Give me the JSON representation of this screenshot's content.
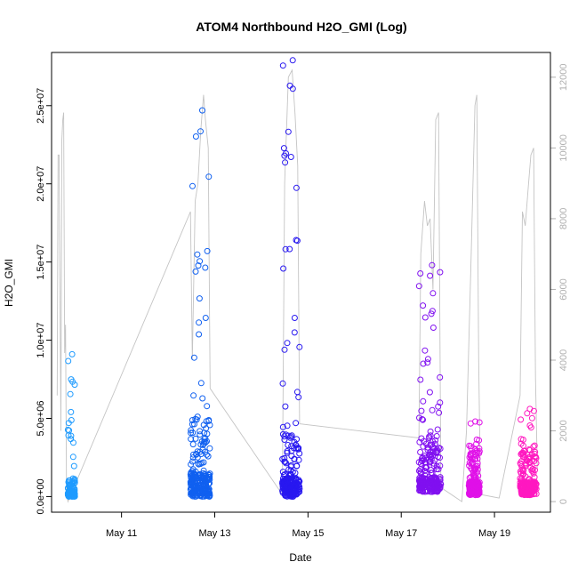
{
  "chart_data": {
    "type": "scatter",
    "title": "ATOM4 Northbound H2O_GMI (Log)",
    "xlabel": "Date",
    "ylabel": "H2O_GMI",
    "x_ticks": [
      "May 11",
      "May 13",
      "May 15",
      "May 17",
      "May 19"
    ],
    "x_tick_days": [
      11,
      13,
      15,
      17,
      19
    ],
    "xlim": [
      9.5,
      20.2
    ],
    "ylim": [
      -1000000,
      28400000
    ],
    "y_ticks": [
      0,
      5000000,
      10000000,
      15000000,
      20000000,
      25000000
    ],
    "y_tick_labels": [
      "0.0e+00",
      "5.0e+06",
      "1.0e+07",
      "1.5e+07",
      "2.0e+07",
      "2.5e+07"
    ],
    "y2lim": [
      -300,
      12700
    ],
    "y2_ticks": [
      0,
      2000,
      4000,
      6000,
      8000,
      10000,
      12000
    ],
    "y2_tick_labels": [
      "0",
      "2000",
      "4000",
      "6000",
      "8000",
      "10000",
      "12000"
    ],
    "grid": false,
    "legend": "none",
    "flights": [
      {
        "date": "2016-05-09",
        "color": "#1E9BFF",
        "x_start": 9.85,
        "x_end": 10.0,
        "y_min": 0,
        "y_max": 9100000,
        "y_typical": 600000,
        "alt_profile": [
          [
            9.62,
            3000
          ],
          [
            9.64,
            9800
          ],
          [
            9.66,
            9800
          ],
          [
            9.7,
            2000
          ],
          [
            9.72,
            10200
          ],
          [
            9.74,
            10800
          ],
          [
            9.76,
            11000
          ],
          [
            9.78,
            4200
          ],
          [
            9.8,
            5000
          ],
          [
            9.82,
            300
          ],
          [
            9.85,
            0
          ]
        ]
      },
      {
        "date": "2016-05-12",
        "color": "#1060F0",
        "x_start": 12.48,
        "x_end": 12.9,
        "y_min": 0,
        "y_max": 24700000,
        "y_typical": 2500000,
        "alt_profile": [
          [
            12.48,
            8200
          ],
          [
            12.52,
            4000
          ],
          [
            12.58,
            8500
          ],
          [
            12.64,
            9000
          ],
          [
            12.7,
            10500
          ],
          [
            12.76,
            11500
          ],
          [
            12.8,
            10800
          ],
          [
            12.86,
            10000
          ],
          [
            12.9,
            3200
          ]
        ]
      },
      {
        "date": "2016-05-14",
        "color": "#2818F0",
        "x_start": 14.45,
        "x_end": 14.82,
        "y_min": 0,
        "y_max": 27900000,
        "y_typical": 2000000,
        "alt_profile": [
          [
            14.45,
            200
          ],
          [
            14.5,
            9000
          ],
          [
            14.58,
            12000
          ],
          [
            14.66,
            12200
          ],
          [
            14.72,
            11000
          ],
          [
            14.78,
            9500
          ],
          [
            14.82,
            2200
          ]
        ]
      },
      {
        "date": "2016-05-17",
        "color": "#8010F0",
        "x_start": 17.38,
        "x_end": 17.85,
        "y_min": 300000,
        "y_max": 14800000,
        "y_typical": 1800000,
        "alt_profile": [
          [
            17.38,
            1800
          ],
          [
            17.42,
            7000
          ],
          [
            17.5,
            8500
          ],
          [
            17.56,
            7800
          ],
          [
            17.62,
            8000
          ],
          [
            17.68,
            6000
          ],
          [
            17.74,
            10800
          ],
          [
            17.8,
            11000
          ],
          [
            17.85,
            400
          ]
        ]
      },
      {
        "date": "2016-05-18",
        "color": "#E010E8",
        "x_start": 18.45,
        "x_end": 18.68,
        "y_min": 100000,
        "y_max": 4800000,
        "y_typical": 1500000,
        "alt_profile": [
          [
            18.3,
            0
          ],
          [
            18.4,
            2000
          ],
          [
            18.5,
            7000
          ],
          [
            18.58,
            11200
          ],
          [
            18.62,
            11500
          ],
          [
            18.66,
            4000
          ],
          [
            18.7,
            200
          ]
        ]
      },
      {
        "date": "2016-05-19",
        "color": "#FF18C0",
        "x_start": 19.55,
        "x_end": 19.9,
        "y_min": 100000,
        "y_max": 5600000,
        "y_typical": 1500000,
        "alt_profile": [
          [
            19.1,
            100
          ],
          [
            19.55,
            3000
          ],
          [
            19.6,
            8200
          ],
          [
            19.66,
            7800
          ],
          [
            19.72,
            8800
          ],
          [
            19.78,
            9800
          ],
          [
            19.84,
            10000
          ],
          [
            19.88,
            3500
          ],
          [
            19.92,
            900
          ]
        ]
      }
    ]
  }
}
